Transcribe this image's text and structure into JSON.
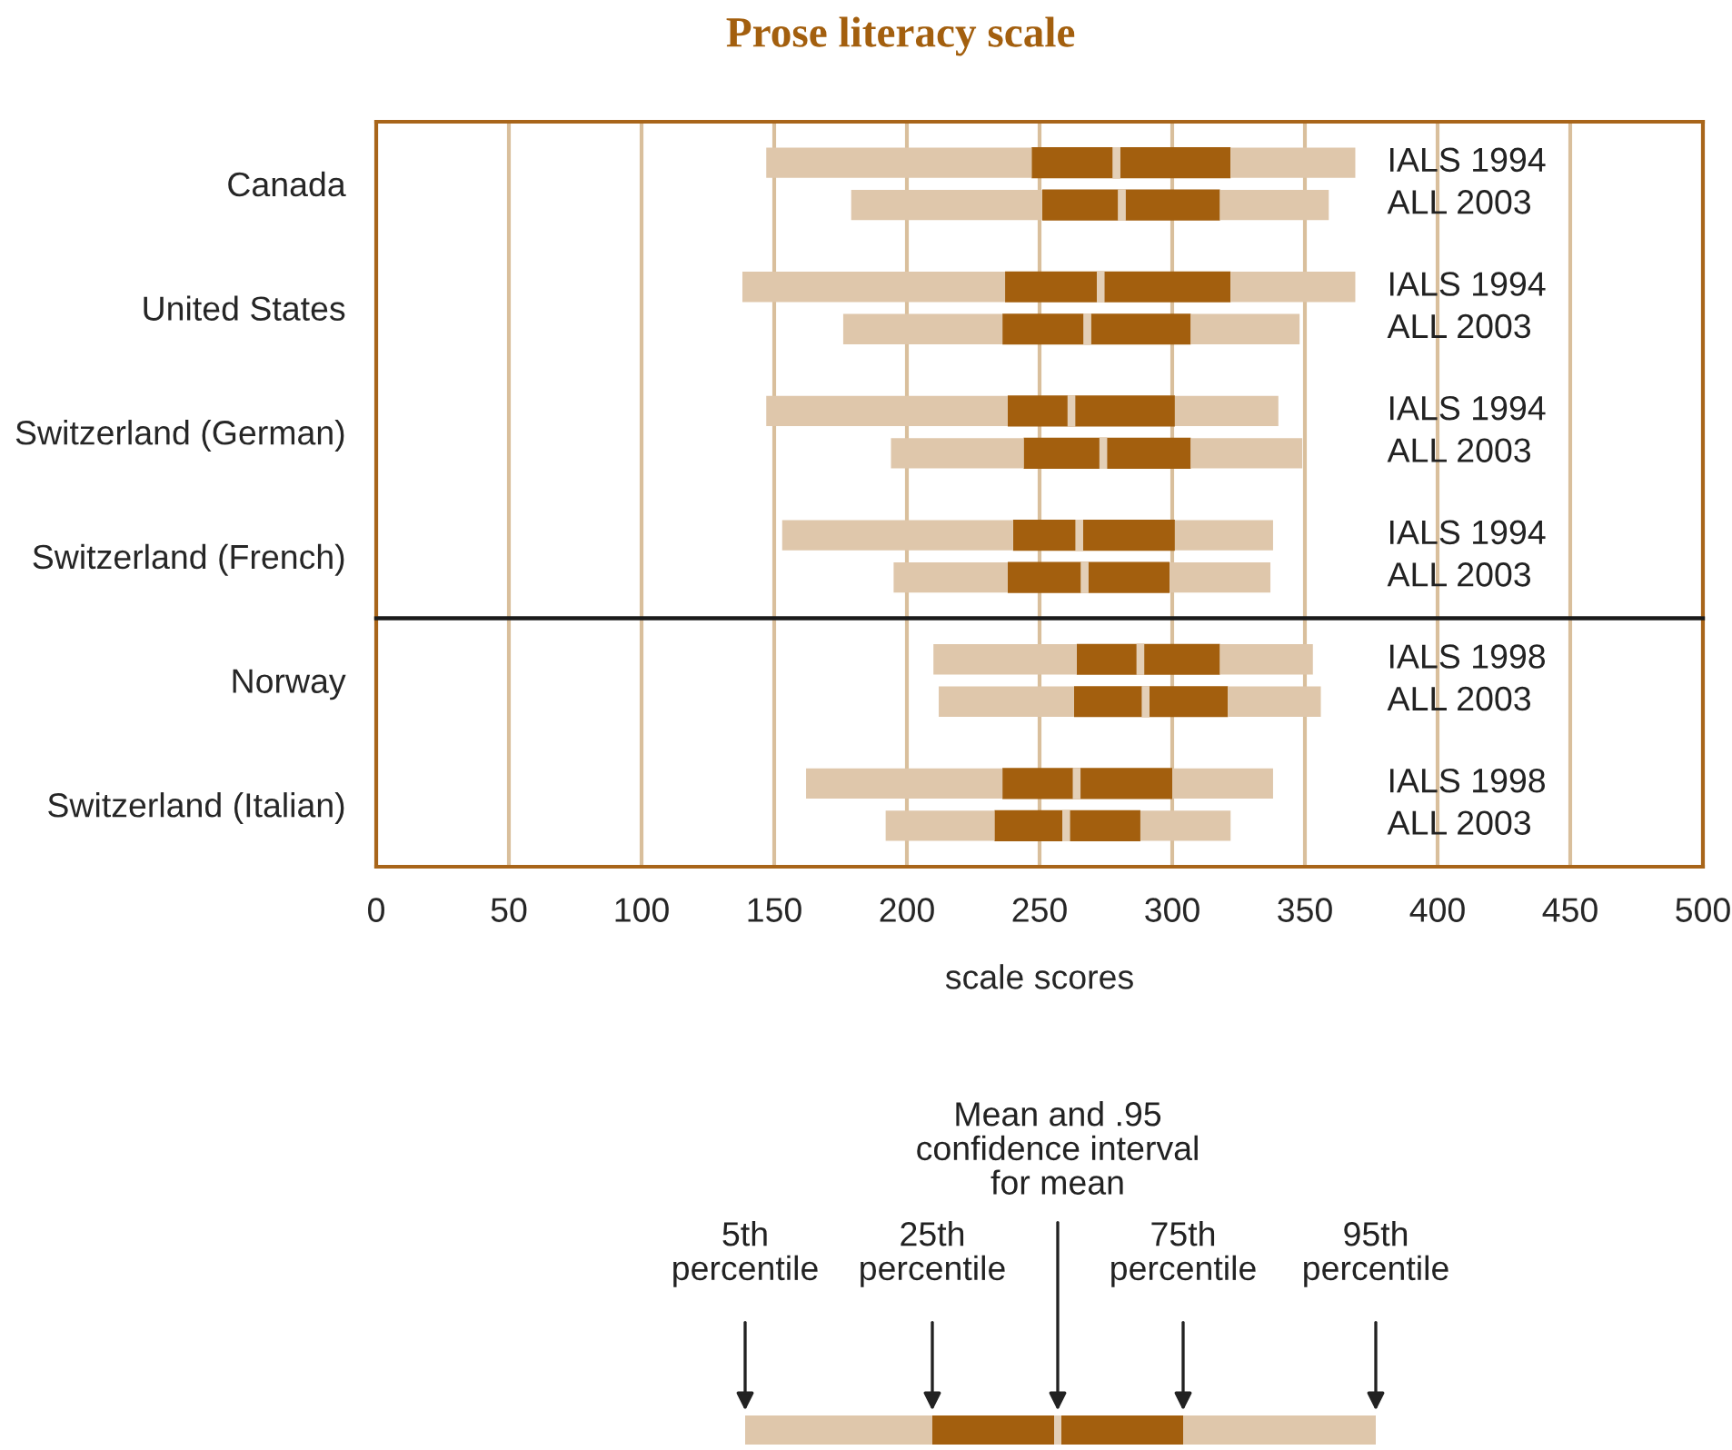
{
  "chart_data": [
    {
      "type": "box",
      "orientation": "horizontal",
      "title": "Prose literacy scale",
      "tick_labels": "y",
      "categories": [
        "Canada",
        "United States",
        "Switzerland (German)",
        "Switzerland (French)"
      ],
      "xlim": [
        0,
        500
      ],
      "xticks": [
        0,
        50,
        100,
        150,
        200,
        250,
        300,
        350,
        400,
        450,
        500
      ],
      "grid": "x",
      "series": [
        {
          "color": "#a35f0e",
          "boxes": [
            {
              "low": 147,
              "q1": 247,
              "median": 279,
              "mean": 279,
              "q3": 322,
              "high": 369
            },
            {
              "low": 138,
              "q1": 237,
              "median": 273,
              "mean": 273,
              "q3": 322,
              "high": 369
            },
            {
              "low": 147,
              "q1": 238,
              "median": 262,
              "mean": 262,
              "q3": 301,
              "high": 340
            },
            {
              "low": 153,
              "q1": 240,
              "median": 265,
              "mean": 265,
              "q3": 301,
              "high": 338
            }
          ]
        },
        {
          "color": "#a35f0e",
          "boxes": [
            {
              "low": 179,
              "q1": 251,
              "median": 281,
              "mean": 281,
              "q3": 318,
              "high": 359
            },
            {
              "low": 176,
              "q1": 236,
              "median": 268,
              "mean": 268,
              "q3": 307,
              "high": 348
            },
            {
              "low": 194,
              "q1": 244,
              "median": 274,
              "mean": 274,
              "q3": 307,
              "high": 349
            },
            {
              "low": 195,
              "q1": 238,
              "median": 267,
              "mean": 267,
              "q3": 299,
              "high": 337
            }
          ]
        }
      ],
      "annotations": [
        "IALS 1994",
        "ALL 2003",
        "IALS 1994",
        "ALL 2003",
        "IALS 1994",
        "ALL 2003",
        "IALS 1994",
        "ALL 2003"
      ]
    },
    {
      "type": "box",
      "orientation": "horizontal",
      "xlabel": "scale scores",
      "categories": [
        "Norway",
        "Switzerland (Italian)"
      ],
      "xlim": [
        0,
        500
      ],
      "xticks": [
        0,
        50,
        100,
        150,
        200,
        250,
        300,
        350,
        400,
        450,
        500
      ],
      "grid": "x",
      "series": [
        {
          "color": "#a35f0e",
          "boxes": [
            {
              "low": 210,
              "q1": 264,
              "median": 288,
              "mean": 288,
              "q3": 318,
              "high": 353
            },
            {
              "low": 162,
              "q1": 236,
              "median": 264,
              "mean": 264,
              "q3": 300,
              "high": 338
            }
          ]
        },
        {
          "color": "#a35f0e",
          "boxes": [
            {
              "low": 212,
              "q1": 263,
              "median": 290,
              "mean": 290,
              "q3": 321,
              "high": 356
            },
            {
              "low": 192,
              "q1": 233,
              "median": 260,
              "mean": 260,
              "q3": 288,
              "high": 322
            }
          ]
        }
      ],
      "annotations": [
        "IALS 1998",
        "ALL 2003",
        "IALS 1998",
        "ALL 2003",
        "5th\npercentile",
        "25th\npercentile",
        "Mean and .95\nconfidence interval\nfor mean",
        "75th\npercentile",
        "95th\npercentile"
      ]
    }
  ]
}
